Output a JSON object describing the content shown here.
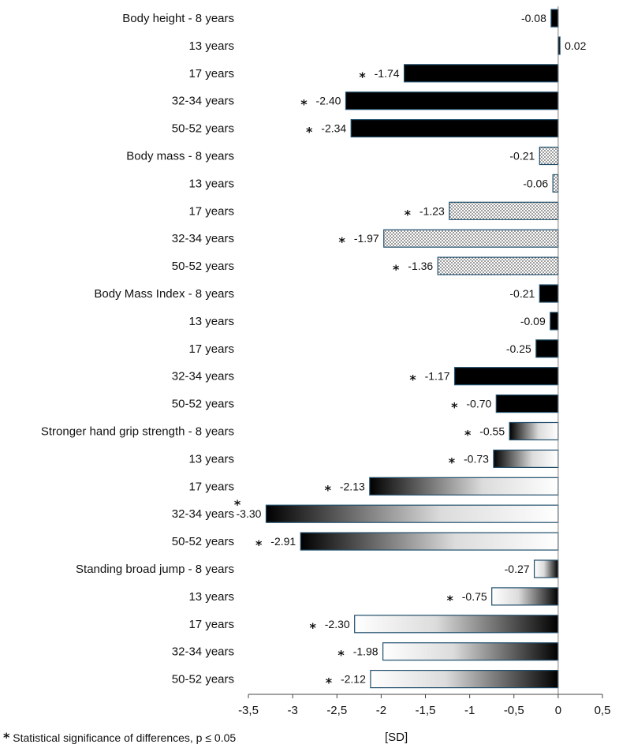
{
  "chart_data": {
    "type": "bar",
    "orientation": "horizontal",
    "categories": [
      "Body height - 8 years",
      "13 years",
      "17 years",
      "32-34 years",
      "50-52 years",
      "Body mass - 8 years",
      "13 years",
      "17 years",
      "32-34 years",
      "50-52 years",
      "Body Mass Index - 8 years",
      "13 years",
      "17 years",
      "32-34 years",
      "50-52 years",
      "Stronger hand grip strength - 8 years",
      "13 years",
      "17 years",
      "32-34 years",
      "50-52 years",
      "Standing broad jump - 8 years",
      "13 years",
      "17 years",
      "32-34 years",
      "50-52 years"
    ],
    "values": [
      -0.08,
      0.02,
      -1.74,
      -2.4,
      -2.34,
      -0.21,
      -0.06,
      -1.23,
      -1.97,
      -1.36,
      -0.21,
      -0.09,
      -0.25,
      -1.17,
      -0.7,
      -0.55,
      -0.73,
      -2.13,
      -3.3,
      -2.91,
      -0.27,
      -0.75,
      -2.3,
      -1.98,
      -2.12
    ],
    "value_labels": [
      "-0.08",
      "0.02",
      "-1.74",
      "-2.40",
      "-2.34",
      "-0.21",
      "-0.06",
      "-1.23",
      "-1.97",
      "-1.36",
      "-0.21",
      "-0.09",
      "-0.25",
      "-1.17",
      "-0.70",
      "-0.55",
      "-0.73",
      "-2.13",
      "-3.30",
      "-2.91",
      "-0.27",
      "-0.75",
      "-2.30",
      "-1.98",
      "-2.12"
    ],
    "significant": [
      false,
      false,
      true,
      true,
      true,
      false,
      false,
      true,
      true,
      true,
      false,
      false,
      false,
      true,
      true,
      true,
      true,
      true,
      true,
      true,
      false,
      true,
      true,
      true,
      true
    ],
    "groups": [
      {
        "name": "Body height",
        "fill": "solid-black"
      },
      {
        "name": "Body mass",
        "fill": "dotted-gray"
      },
      {
        "name": "Body Mass Index",
        "fill": "solid-black"
      },
      {
        "name": "Stronger hand grip strength",
        "fill": "gradient-black-to-white"
      },
      {
        "name": "Standing broad jump",
        "fill": "gradient-white-to-black"
      }
    ],
    "xlim": [
      -3.5,
      0.5
    ],
    "x_ticks": [
      "-3,5",
      "-3",
      "-2,5",
      "-2",
      "-1,5",
      "-1",
      "-0,5",
      "0",
      "0,5"
    ],
    "xlabel": "[SD]",
    "star_symbol": "*",
    "grid": false
  },
  "footnote": {
    "star": "*",
    "text": "Statistical significance of differences, p ≤ 0.05"
  },
  "colors": {
    "bar_border": "#1f4e6b",
    "black": "#000000",
    "pattern_dot": "#555555"
  }
}
